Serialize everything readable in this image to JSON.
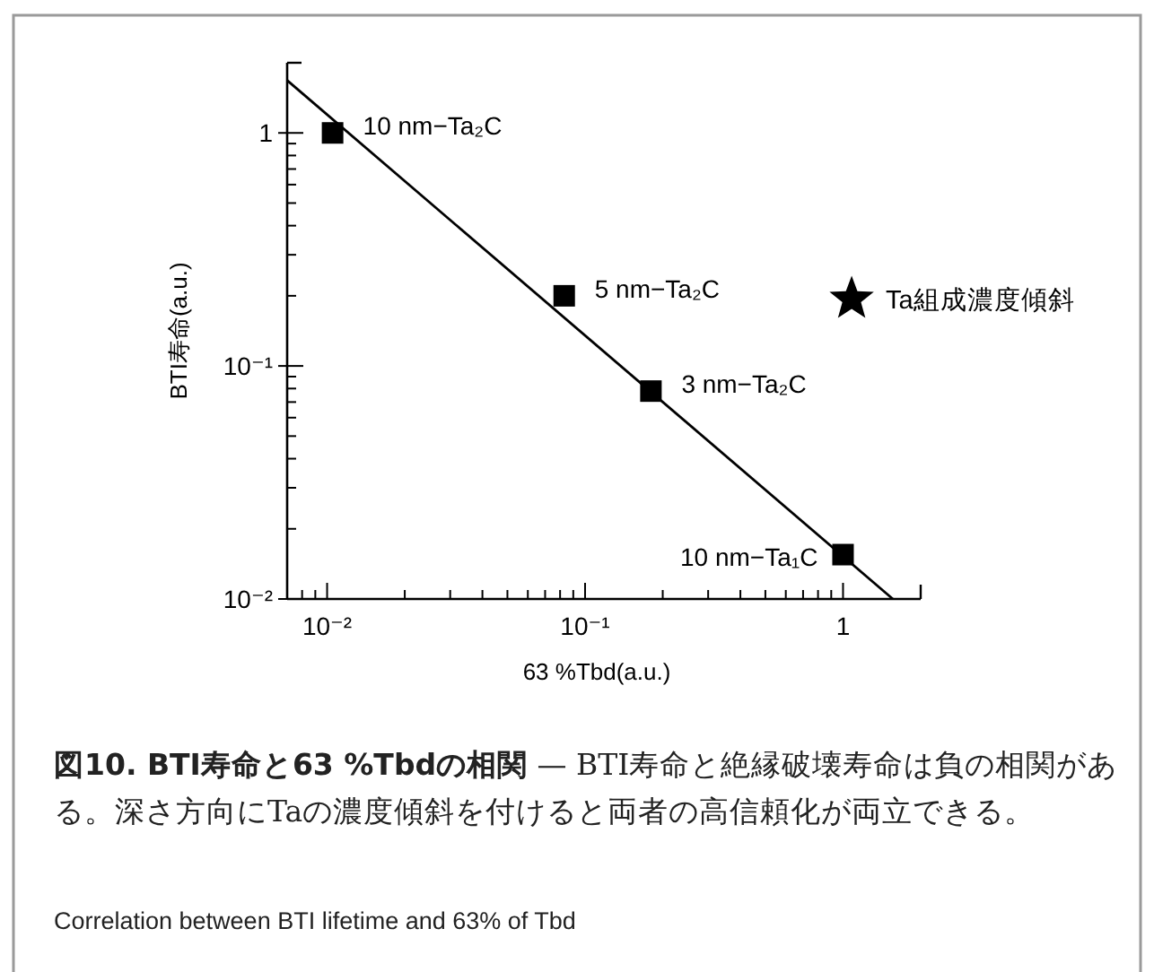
{
  "chart_data": {
    "type": "scatter",
    "title": "図10. BTI寿命と63 %Tbdの相関",
    "subtitle": "— BTI寿命と絶縁破壊寿命は負の相関がある。深さ方向にTaの濃度傾斜を付けると両者の高信頼化が両立できる。",
    "xlabel": "63 %Tbd(a.u.)",
    "ylabel": "BTI寿命(a.u.)",
    "log": "xy",
    "xlim": [
      0.007,
      2
    ],
    "ylim": [
      0.01,
      2
    ],
    "xticks": [
      {
        "value": 0.01,
        "label": "10⁻²"
      },
      {
        "value": 0.02,
        "label": null
      },
      {
        "value": 0.03,
        "label": null
      },
      {
        "value": 0.04,
        "label": null
      },
      {
        "value": 0.05,
        "label": null
      },
      {
        "value": 0.06,
        "label": null
      },
      {
        "value": 0.07,
        "label": null
      },
      {
        "value": 0.08,
        "label": null
      },
      {
        "value": 0.09,
        "label": null
      },
      {
        "value": 0.1,
        "label": "10⁻¹"
      },
      {
        "value": 0.2,
        "label": null
      },
      {
        "value": 0.3,
        "label": null
      },
      {
        "value": 0.4,
        "label": null
      },
      {
        "value": 0.5,
        "label": null
      },
      {
        "value": 0.6,
        "label": null
      },
      {
        "value": 0.7,
        "label": null
      },
      {
        "value": 0.8,
        "label": null
      },
      {
        "value": 0.9,
        "label": null
      },
      {
        "value": 1,
        "label": "1"
      },
      {
        "value": 0.008,
        "label": null
      },
      {
        "value": 0.009,
        "label": null
      }
    ],
    "yticks": [
      {
        "value": 0.01,
        "label": "10⁻²"
      },
      {
        "value": 0.02,
        "label": null
      },
      {
        "value": 0.03,
        "label": null
      },
      {
        "value": 0.04,
        "label": null
      },
      {
        "value": 0.05,
        "label": null
      },
      {
        "value": 0.06,
        "label": null
      },
      {
        "value": 0.07,
        "label": null
      },
      {
        "value": 0.08,
        "label": null
      },
      {
        "value": 0.09,
        "label": null
      },
      {
        "value": 0.1,
        "label": "10⁻¹"
      },
      {
        "value": 0.2,
        "label": null
      },
      {
        "value": 0.3,
        "label": null
      },
      {
        "value": 0.4,
        "label": null
      },
      {
        "value": 0.5,
        "label": null
      },
      {
        "value": 0.6,
        "label": null
      },
      {
        "value": 0.7,
        "label": null
      },
      {
        "value": 0.8,
        "label": null
      },
      {
        "value": 0.9,
        "label": null
      },
      {
        "value": 1,
        "label": "1"
      }
    ],
    "series": [
      {
        "type": "line",
        "color": "#000000",
        "marker": "none",
        "line_style": "solid",
        "x": [
          0.007,
          1.56
        ],
        "values": [
          1.68,
          0.01
        ]
      },
      {
        "type": "scatter",
        "color": "#000000",
        "marker": "square",
        "x": [
          0.0105,
          0.083,
          0.18,
          1.0
        ],
        "values": [
          1.0,
          0.2,
          0.078,
          0.0155
        ]
      },
      {
        "type": "scatter",
        "name": "Ta組成濃度傾斜",
        "color": "#000000",
        "marker": "star",
        "x": [
          1.08
        ],
        "values": [
          0.197
        ]
      }
    ],
    "annotations": [
      {
        "text": "10 nm−Ta₂C",
        "x": 0.0105,
        "y": 1.0
      },
      {
        "text": "5 nm−Ta₂C",
        "x": 0.083,
        "y": 0.2
      },
      {
        "text": "3 nm−Ta₂C",
        "x": 0.18,
        "y": 0.078
      },
      {
        "text": "10 nm−Ta₁C",
        "x": 1.0,
        "y": 0.0155
      },
      "Correlation between BTI lifetime and 63% of Tbd"
    ]
  }
}
